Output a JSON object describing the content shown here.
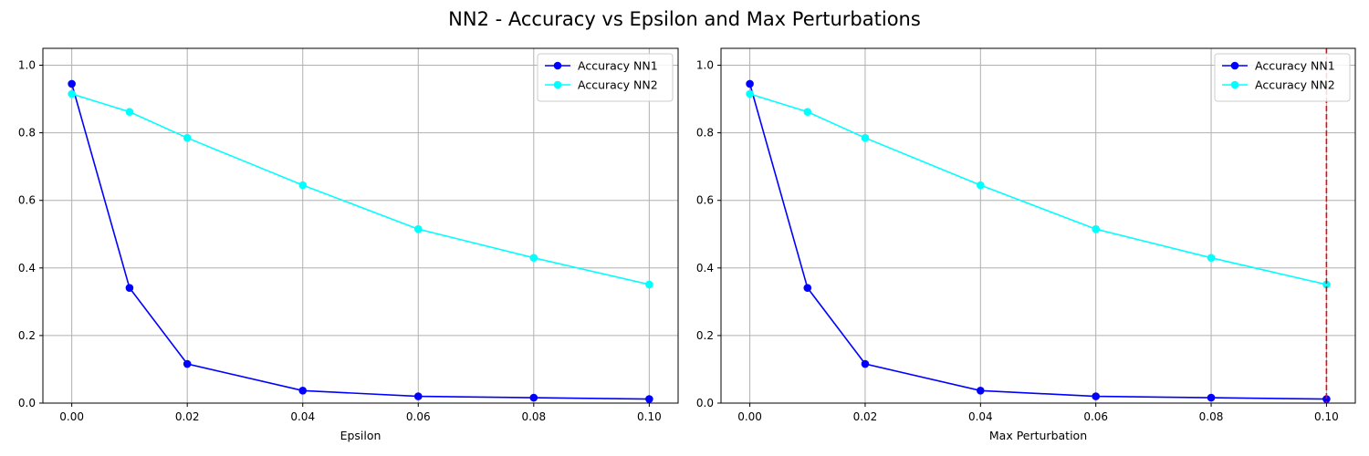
{
  "suptitle": "NN2 - Accuracy vs Epsilon and Max Perturbations",
  "chart_data": [
    {
      "type": "line",
      "xlabel": "Epsilon",
      "ylabel": "",
      "x": [
        0.0,
        0.01,
        0.02,
        0.04,
        0.06,
        0.08,
        0.1
      ],
      "xlim": [
        -0.005,
        0.105
      ],
      "ylim": [
        0,
        1.05
      ],
      "xticks": [
        0.0,
        0.02,
        0.04,
        0.06,
        0.08,
        0.1
      ],
      "xtick_labels": [
        "0.00",
        "0.02",
        "0.04",
        "0.06",
        "0.08",
        "0.10"
      ],
      "yticks": [
        0.0,
        0.2,
        0.4,
        0.6,
        0.8,
        1.0
      ],
      "ytick_labels": [
        "0.0",
        "0.2",
        "0.4",
        "0.6",
        "0.8",
        "1.0"
      ],
      "grid": true,
      "legend": "top-right",
      "series": [
        {
          "name": "Accuracy NN1",
          "color": "#0000ff",
          "values": [
            0.945,
            0.341,
            0.116,
            0.037,
            0.02,
            0.016,
            0.012
          ]
        },
        {
          "name": "Accuracy NN2",
          "color": "#00ffff",
          "values": [
            0.915,
            0.862,
            0.785,
            0.645,
            0.515,
            0.43,
            0.351
          ]
        }
      ],
      "vlines": []
    },
    {
      "type": "line",
      "xlabel": "Max Perturbation",
      "ylabel": "",
      "x": [
        0.0,
        0.01,
        0.02,
        0.04,
        0.06,
        0.08,
        0.1
      ],
      "xlim": [
        -0.005,
        0.105
      ],
      "ylim": [
        0,
        1.05
      ],
      "xticks": [
        0.0,
        0.02,
        0.04,
        0.06,
        0.08,
        0.1
      ],
      "xtick_labels": [
        "0.00",
        "0.02",
        "0.04",
        "0.06",
        "0.08",
        "0.10"
      ],
      "yticks": [
        0.0,
        0.2,
        0.4,
        0.6,
        0.8,
        1.0
      ],
      "ytick_labels": [
        "0.0",
        "0.2",
        "0.4",
        "0.6",
        "0.8",
        "1.0"
      ],
      "grid": true,
      "legend": "top-right",
      "series": [
        {
          "name": "Accuracy NN1",
          "color": "#0000ff",
          "values": [
            0.945,
            0.341,
            0.116,
            0.037,
            0.02,
            0.016,
            0.012
          ]
        },
        {
          "name": "Accuracy NN2",
          "color": "#00ffff",
          "values": [
            0.915,
            0.862,
            0.785,
            0.645,
            0.515,
            0.43,
            0.351
          ]
        }
      ],
      "vlines": [
        {
          "x": 0.1,
          "color": "#ff0000",
          "style": "dashed"
        }
      ]
    }
  ]
}
